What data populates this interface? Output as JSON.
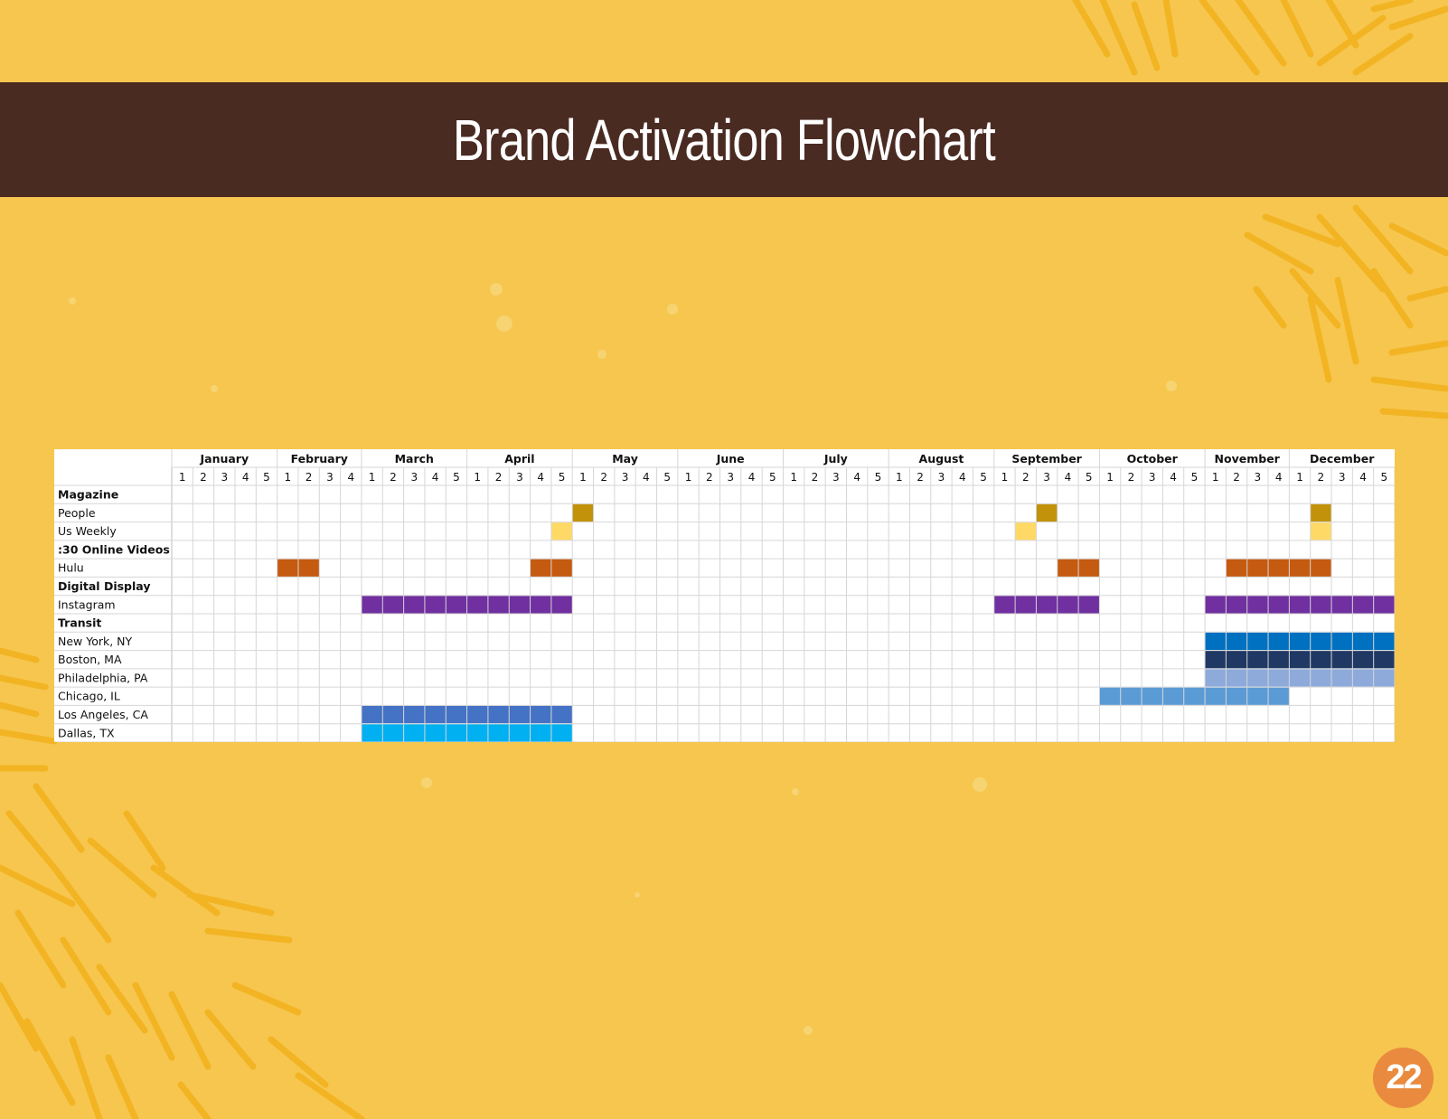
{
  "title": "Brand Activation Flowchart",
  "page_number": "22",
  "colors": {
    "background": "#f6c64f",
    "banner": "#4a2b22",
    "badge": "#e98a3e",
    "stroke": "#f2b21c"
  },
  "chart_data": {
    "type": "table",
    "months": [
      {
        "name": "January",
        "weeks": [
          "1",
          "2",
          "3",
          "4",
          "5"
        ]
      },
      {
        "name": "February",
        "weeks": [
          "1",
          "2",
          "3",
          "4"
        ]
      },
      {
        "name": "March",
        "weeks": [
          "1",
          "2",
          "3",
          "4",
          "5"
        ]
      },
      {
        "name": "April",
        "weeks": [
          "1",
          "2",
          "3",
          "4",
          "5"
        ]
      },
      {
        "name": "May",
        "weeks": [
          "1",
          "2",
          "3",
          "4",
          "5"
        ]
      },
      {
        "name": "June",
        "weeks": [
          "1",
          "2",
          "3",
          "4",
          "5"
        ]
      },
      {
        "name": "July",
        "weeks": [
          "1",
          "2",
          "3",
          "4",
          "5"
        ]
      },
      {
        "name": "August",
        "weeks": [
          "1",
          "2",
          "3",
          "4",
          "5"
        ]
      },
      {
        "name": "September",
        "weeks": [
          "1",
          "2",
          "3",
          "4",
          "5"
        ]
      },
      {
        "name": "October",
        "weeks": [
          "1",
          "2",
          "3",
          "4",
          "5"
        ]
      },
      {
        "name": "November",
        "weeks": [
          "1",
          "2",
          "3",
          "4"
        ]
      },
      {
        "name": "December",
        "weeks": [
          "1",
          "2",
          "3",
          "4",
          "5"
        ]
      }
    ],
    "rows": [
      {
        "label": "Magazine",
        "bold": true,
        "bars": []
      },
      {
        "label": "People",
        "bold": false,
        "bars": [
          {
            "start": "May 1",
            "end": "May 1",
            "color": "#c2920a"
          },
          {
            "start": "September 3",
            "end": "September 3",
            "color": "#c2920a"
          },
          {
            "start": "December 2",
            "end": "December 2",
            "color": "#c2920a"
          }
        ]
      },
      {
        "label": "Us Weekly",
        "bold": false,
        "bars": [
          {
            "start": "April 5",
            "end": "April 5",
            "color": "#ffd966"
          },
          {
            "start": "September 2",
            "end": "September 2",
            "color": "#ffd966"
          },
          {
            "start": "December 2",
            "end": "December 2",
            "color": "#ffd966"
          }
        ]
      },
      {
        "label": ":30 Online Videos",
        "bold": true,
        "bars": []
      },
      {
        "label": "Hulu",
        "bold": false,
        "bars": [
          {
            "start": "February 1",
            "end": "February 2",
            "color": "#c55a11"
          },
          {
            "start": "April 4",
            "end": "April 5",
            "color": "#c55a11"
          },
          {
            "start": "September 4",
            "end": "September 5",
            "color": "#c55a11"
          },
          {
            "start": "November 2",
            "end": "December 2",
            "color": "#c55a11"
          }
        ]
      },
      {
        "label": "Digital Display",
        "bold": true,
        "bars": []
      },
      {
        "label": "Instagram",
        "bold": false,
        "bars": [
          {
            "start": "March 1",
            "end": "April 5",
            "color": "#7030a0"
          },
          {
            "start": "September 1",
            "end": "September 5",
            "color": "#7030a0"
          },
          {
            "start": "November 1",
            "end": "December 5",
            "color": "#7030a0"
          }
        ]
      },
      {
        "label": "Transit",
        "bold": true,
        "bars": []
      },
      {
        "label": "New York, NY",
        "bold": false,
        "bars": [
          {
            "start": "November 1",
            "end": "December 5",
            "color": "#0070c0"
          }
        ]
      },
      {
        "label": "Boston, MA",
        "bold": false,
        "bars": [
          {
            "start": "November 1",
            "end": "December 5",
            "color": "#1f3864"
          }
        ]
      },
      {
        "label": "Philadelphia, PA",
        "bold": false,
        "bars": [
          {
            "start": "November 1",
            "end": "December 5",
            "color": "#8eaadb"
          }
        ]
      },
      {
        "label": "Chicago, IL",
        "bold": false,
        "bars": [
          {
            "start": "October 1",
            "end": "November 4",
            "color": "#5b9bd5"
          }
        ]
      },
      {
        "label": "Los Angeles, CA",
        "bold": false,
        "bars": [
          {
            "start": "March 1",
            "end": "April 5",
            "color": "#4472c4"
          }
        ]
      },
      {
        "label": "Dallas, TX",
        "bold": false,
        "bars": [
          {
            "start": "March 1",
            "end": "April 5",
            "color": "#00b0f0"
          }
        ]
      }
    ]
  }
}
